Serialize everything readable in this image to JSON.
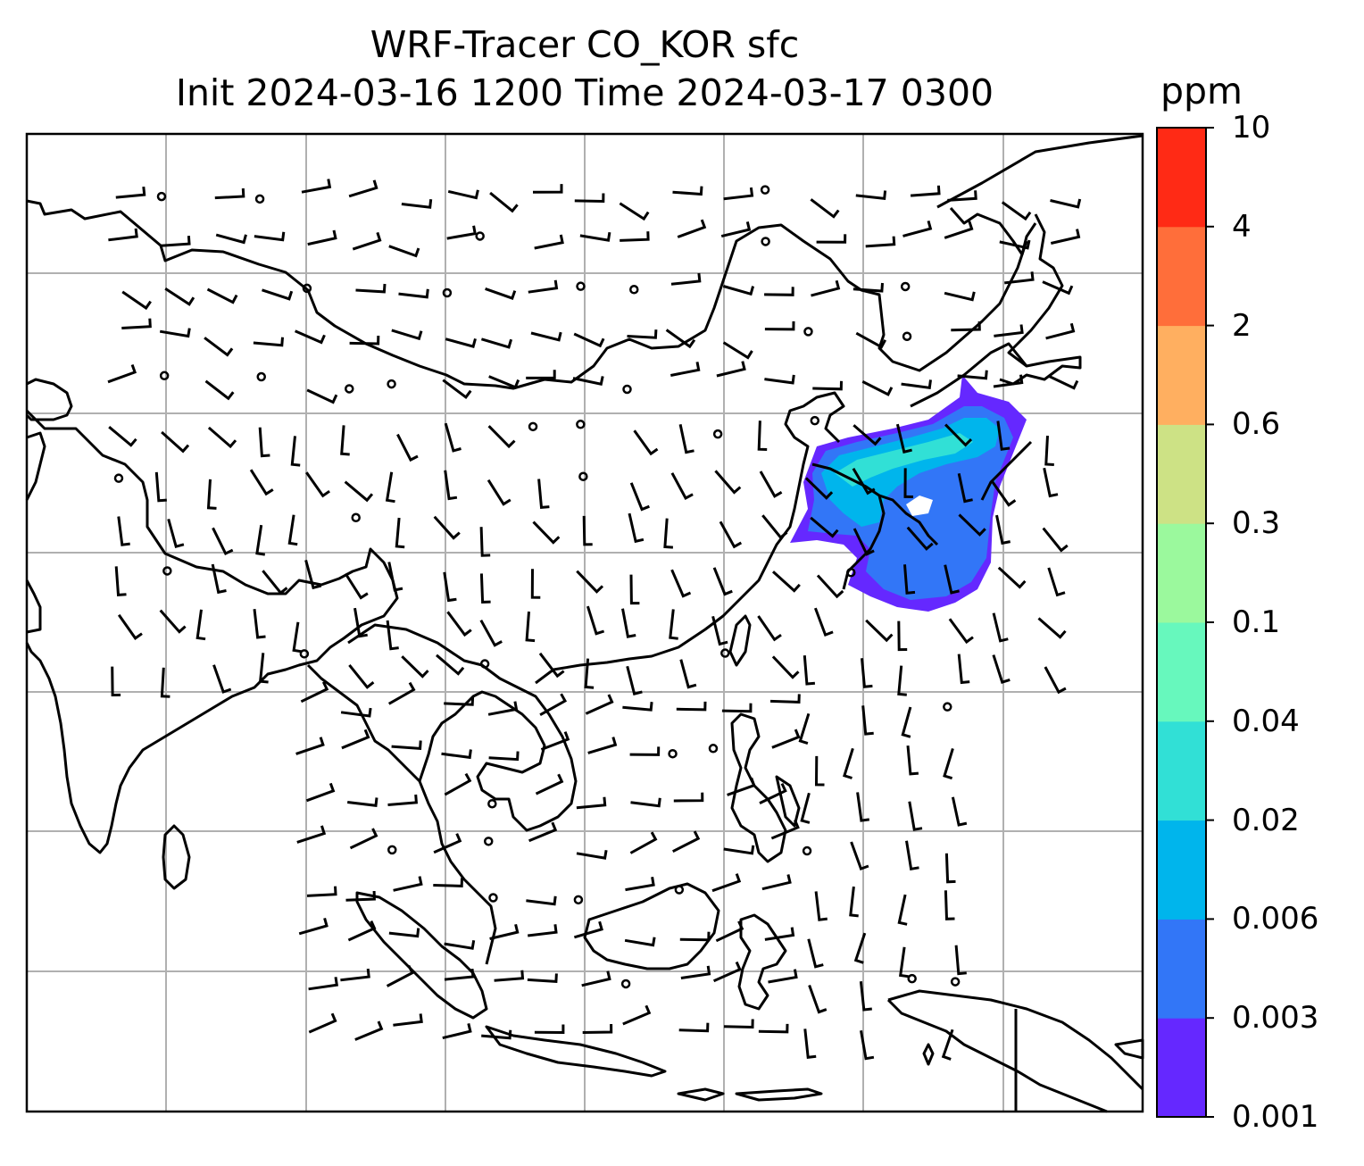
{
  "title": {
    "line1": "WRF-Tracer CO_KOR sfc",
    "line2": "Init 2024-03-16 1200 Time 2024-03-17 0300"
  },
  "colorbar": {
    "unit": "ppm",
    "levels": [
      "0.001",
      "0.003",
      "0.006",
      "0.02",
      "0.04",
      "0.1",
      "0.3",
      "0.6",
      "2",
      "4",
      "10"
    ],
    "colors": [
      "#6528ff",
      "#3276f7",
      "#00b5ec",
      "#31e0d6",
      "#67f8bd",
      "#9bf99d",
      "#cde285",
      "#ffaf60",
      "#ff6e3a",
      "#ff2a15"
    ]
  },
  "map": {
    "gridlines": true,
    "coastline_color": "#000000",
    "grid_color": "#b0b0b0",
    "plume_colors": [
      "#6528ff",
      "#3276f7",
      "#00b5ec",
      "#31e0d6"
    ]
  }
}
